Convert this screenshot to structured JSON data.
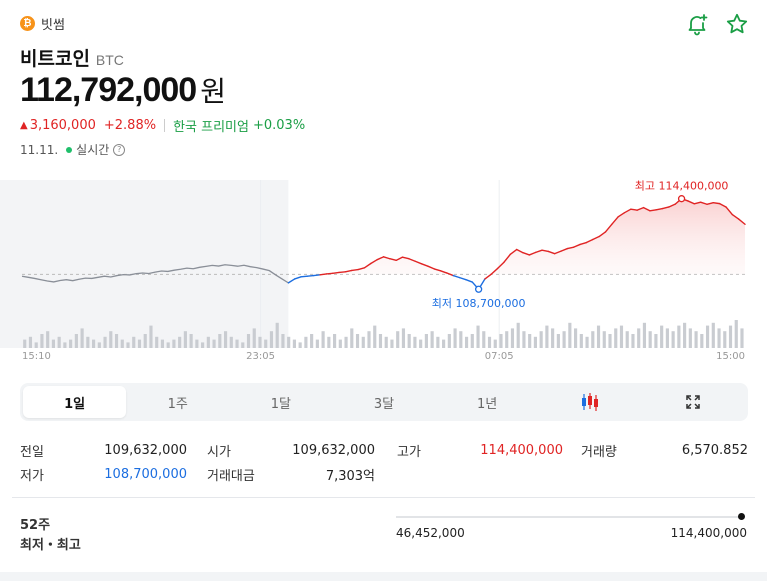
{
  "source": {
    "name": "빗썸",
    "logo_glyph": "₿",
    "logo_color": "#f7931a"
  },
  "header_icons": [
    "bell-plus-icon",
    "star-icon"
  ],
  "coin": {
    "name": "비트코인",
    "ticker": "BTC"
  },
  "price": {
    "value": "112,792,000",
    "unit": "원"
  },
  "change": {
    "direction": "up",
    "arrow": "▲",
    "amount": "3,160,000",
    "percent": "+2.88%",
    "premium_label": "한국 프리미엄",
    "premium_value": "+0.03%"
  },
  "timestamp": {
    "date": "11.11.",
    "live_label": "실시간",
    "help": "?"
  },
  "colors": {
    "up": "#e02424",
    "down": "#1c6ee0",
    "accent_green": "#1a9e45"
  },
  "chart_data": {
    "type": "line",
    "x_ticks": [
      "15:10",
      "23:05",
      "07:05",
      "15:00"
    ],
    "baseline": 109632000,
    "high": {
      "label": "최고 114,400,000",
      "value": 114400000
    },
    "low": {
      "label": "최저 108,700,000",
      "value": 108700000
    },
    "ylim": [
      108400000,
      115200000
    ],
    "previous_period_shaded": true,
    "series_prev": [
      109520000,
      109450000,
      109380000,
      109300000,
      109220000,
      109160000,
      109250000,
      109300000,
      109240000,
      109330000,
      109400000,
      109380000,
      109450000,
      109520000,
      109470000,
      109560000,
      109620000,
      109600000,
      109680000,
      109720000,
      109690000,
      109780000,
      109850000,
      109820000,
      109900000,
      109960000,
      110030000,
      109990000,
      110080000,
      110140000,
      110200000,
      110160000,
      110240000,
      110200000,
      110150000,
      110210000,
      110120000,
      110060000,
      109970000,
      109870000,
      109600000,
      109350000,
      109100000
    ],
    "series_current": [
      109100000,
      109350000,
      109480000,
      109520000,
      109560000,
      109610000,
      109660000,
      109700000,
      109760000,
      109800000,
      109880000,
      109940000,
      110050000,
      110320000,
      110560000,
      110740000,
      110620000,
      110520000,
      110720000,
      110620000,
      110460000,
      110300000,
      110150000,
      109980000,
      109860000,
      109720000,
      109560000,
      109430000,
      109300000,
      109150000,
      108700000,
      109350000,
      109650000,
      110010000,
      110400000,
      110900000,
      111200000,
      111000000,
      110860000,
      111020000,
      111160000,
      111080000,
      110940000,
      111100000,
      111260000,
      111350000,
      111520000,
      111640000,
      111830000,
      112020000,
      112310000,
      112790000,
      113260000,
      113520000,
      113740000,
      113680000,
      113840000,
      113640000,
      113700000,
      113780000,
      113880000,
      114060000,
      114400000,
      114260000,
      114080000,
      114180000,
      114050000,
      114150000,
      114090000,
      113880000,
      113400000,
      113120000,
      112792000
    ],
    "volume": [
      3,
      4,
      2,
      5,
      6,
      3,
      4,
      2,
      3,
      5,
      7,
      4,
      3,
      2,
      4,
      6,
      5,
      3,
      2,
      4,
      3,
      5,
      8,
      4,
      3,
      2,
      3,
      4,
      6,
      5,
      3,
      2,
      4,
      3,
      5,
      6,
      4,
      3,
      2,
      5,
      7,
      4,
      3,
      6,
      9,
      5,
      4,
      3,
      2,
      4,
      5,
      3,
      6,
      4,
      5,
      3,
      4,
      7,
      5,
      4,
      6,
      8,
      5,
      4,
      3,
      6,
      7,
      5,
      4,
      3,
      5,
      6,
      4,
      3,
      5,
      7,
      6,
      4,
      5,
      8,
      6,
      4,
      3,
      5,
      6,
      7,
      9,
      6,
      5,
      4,
      6,
      8,
      7,
      5,
      6,
      9,
      7,
      5,
      4,
      6,
      8,
      6,
      5,
      7,
      8,
      6,
      5,
      7,
      9,
      6,
      5,
      8,
      7,
      6,
      8,
      9,
      7,
      6,
      5,
      8,
      9,
      7,
      6,
      8,
      10,
      7
    ]
  },
  "tabs": [
    {
      "label": "1일",
      "active": true
    },
    {
      "label": "1주",
      "active": false
    },
    {
      "label": "1달",
      "active": false
    },
    {
      "label": "3달",
      "active": false
    },
    {
      "label": "1년",
      "active": false
    },
    {
      "icon": "candlestick-icon"
    },
    {
      "icon": "fullscreen-icon"
    }
  ],
  "stats": {
    "prev_close": {
      "label": "전일",
      "value": "109,632,000"
    },
    "open": {
      "label": "시가",
      "value": "109,632,000"
    },
    "high": {
      "label": "고가",
      "value": "114,400,000"
    },
    "volume": {
      "label": "거래량",
      "value": "6,570.852"
    },
    "low": {
      "label": "저가",
      "value": "108,700,000"
    },
    "trade_value": {
      "label": "거래대금",
      "value": "7,303억"
    }
  },
  "week52": {
    "label_top": "52주",
    "label_bottom": "최저・최고",
    "low": "46,452,000",
    "high": "114,400,000",
    "position": 0.99
  }
}
